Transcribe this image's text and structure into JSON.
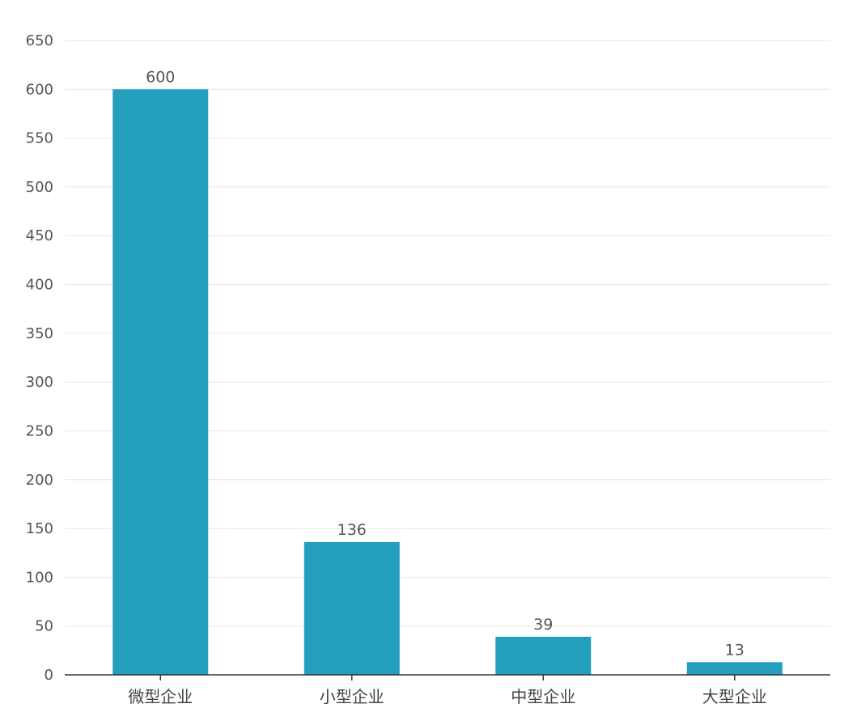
{
  "chart_data": {
    "type": "bar",
    "categories": [
      "微型企业",
      "小型企业",
      "中型企业",
      "大型企业"
    ],
    "values": [
      600,
      136,
      39,
      13
    ],
    "title": "",
    "xlabel": "",
    "ylabel": "",
    "ylim": [
      0,
      650
    ],
    "yticks": [
      0,
      50,
      100,
      150,
      200,
      250,
      300,
      350,
      400,
      450,
      500,
      550,
      600,
      650
    ],
    "grid": true,
    "data_labels": true,
    "bar_color": "#239fbd",
    "gridline_color": "#e6e6e6",
    "axis_color": "#333333"
  }
}
